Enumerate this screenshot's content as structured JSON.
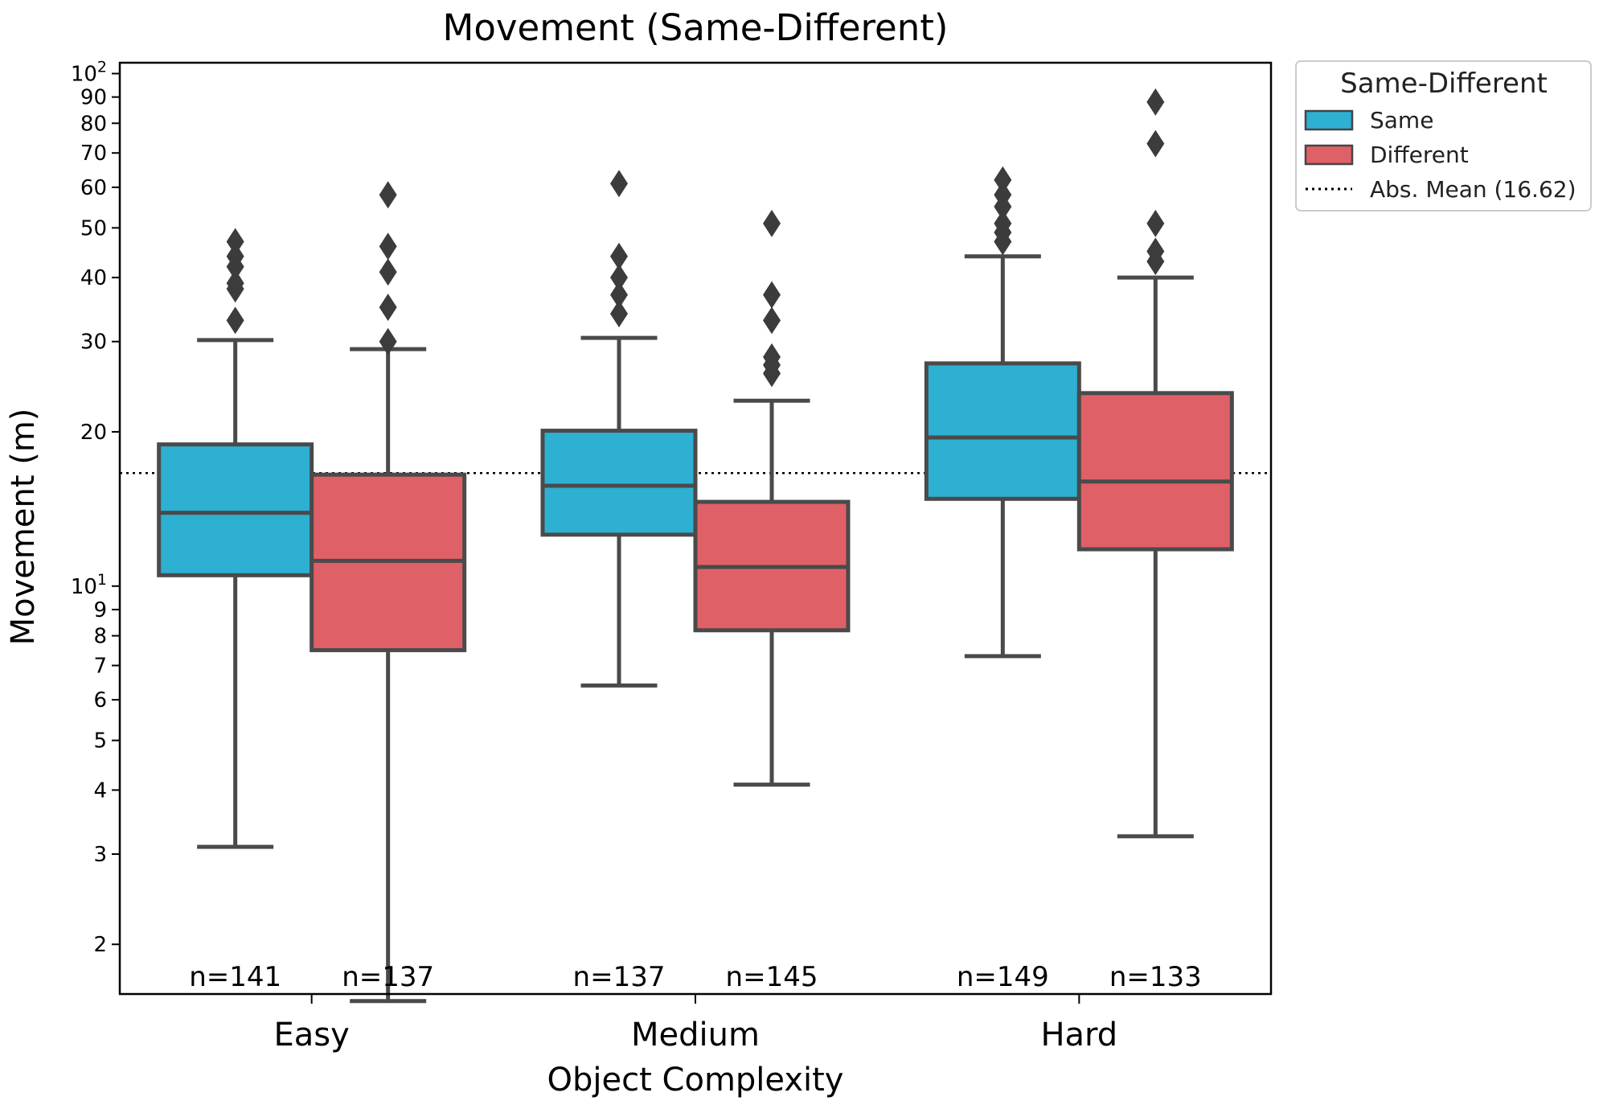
{
  "chart_data": {
    "type": "box",
    "title": "Movement (Same-Different)",
    "xlabel": "Object Complexity",
    "ylabel": "Movement (m)",
    "yscale": "log",
    "ylim": [
      1.6,
      105
    ],
    "yticks": [
      {
        "value": 2,
        "label": "2"
      },
      {
        "value": 3,
        "label": "3"
      },
      {
        "value": 4,
        "label": "4"
      },
      {
        "value": 5,
        "label": "5"
      },
      {
        "value": 6,
        "label": "6"
      },
      {
        "value": 7,
        "label": "7"
      },
      {
        "value": 8,
        "label": "8"
      },
      {
        "value": 9,
        "label": "9"
      },
      {
        "value": 10,
        "label": "10",
        "exp": "1"
      },
      {
        "value": 20,
        "label": "20"
      },
      {
        "value": 30,
        "label": "30"
      },
      {
        "value": 40,
        "label": "40"
      },
      {
        "value": 50,
        "label": "50"
      },
      {
        "value": 60,
        "label": "60"
      },
      {
        "value": 70,
        "label": "70"
      },
      {
        "value": 80,
        "label": "80"
      },
      {
        "value": 90,
        "label": "90"
      },
      {
        "value": 100,
        "label": "10",
        "exp": "2"
      }
    ],
    "categories": [
      "Easy",
      "Medium",
      "Hard"
    ],
    "legend": {
      "title": "Same-Different",
      "placement": "outside-top-right",
      "entries": [
        "Same",
        "Different",
        "Abs. Mean (16.62)"
      ]
    },
    "reference_line": {
      "name": "Abs. Mean (16.62)",
      "value": 16.62,
      "style": "dotted"
    },
    "series": [
      {
        "name": "Same",
        "color": "#2db0d1",
        "boxes": [
          {
            "category": "Easy",
            "whisker_low": 3.1,
            "q1": 10.5,
            "median": 13.9,
            "q3": 18.9,
            "whisker_high": 30.2,
            "outliers": [
              33,
              38,
              39,
              42,
              44,
              47
            ],
            "n_label": "n=141"
          },
          {
            "category": "Medium",
            "whisker_low": 6.4,
            "q1": 12.6,
            "median": 15.7,
            "q3": 20.1,
            "whisker_high": 30.5,
            "outliers": [
              34,
              37,
              40,
              44,
              61
            ],
            "n_label": "n=137"
          },
          {
            "category": "Hard",
            "whisker_low": 7.3,
            "q1": 14.8,
            "median": 19.5,
            "q3": 27.2,
            "whisker_high": 44,
            "outliers": [
              47,
              49,
              51,
              55,
              58,
              62
            ],
            "n_label": "n=149"
          }
        ]
      },
      {
        "name": "Different",
        "color": "#e06068",
        "boxes": [
          {
            "category": "Easy",
            "whisker_low": 1.55,
            "q1": 7.5,
            "median": 11.2,
            "q3": 16.5,
            "whisker_high": 29,
            "outliers": [
              30,
              35,
              41,
              46,
              58
            ],
            "n_label": "n=137"
          },
          {
            "category": "Medium",
            "whisker_low": 4.1,
            "q1": 8.2,
            "median": 10.9,
            "q3": 14.6,
            "whisker_high": 23,
            "outliers": [
              26,
              27,
              28,
              33,
              37,
              51
            ],
            "n_label": "n=145"
          },
          {
            "category": "Hard",
            "whisker_low": 3.25,
            "q1": 11.8,
            "median": 16.0,
            "q3": 23.8,
            "whisker_high": 40,
            "outliers": [
              43,
              45,
              51,
              73,
              88
            ],
            "n_label": "n=133"
          }
        ]
      }
    ]
  }
}
